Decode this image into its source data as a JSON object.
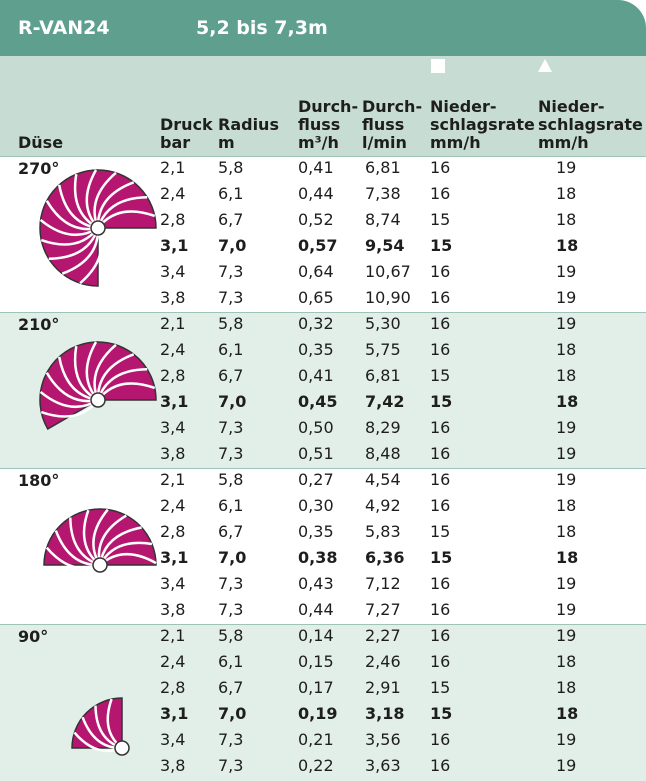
{
  "header": {
    "model": "R-VAN24",
    "range": "5,2 bis 7,3m"
  },
  "columns": [
    [
      "Düse"
    ],
    [
      "Druck",
      "bar"
    ],
    [
      "Radius",
      "m"
    ],
    [
      "Durch-",
      "fluss",
      "m³/h"
    ],
    [
      "Durch-",
      "fluss",
      "l/min"
    ],
    [
      "Nieder-",
      "schlagsrate",
      "mm/h"
    ],
    [
      "Nieder-",
      "schlagsrate",
      "mm/h"
    ]
  ],
  "bold_row": 3,
  "groups": [
    {
      "angle": "270°",
      "rows": [
        [
          "2,1",
          "5,8",
          "0,41",
          "6,81",
          "16",
          "19"
        ],
        [
          "2,4",
          "6,1",
          "0,44",
          "7,38",
          "16",
          "18"
        ],
        [
          "2,8",
          "6,7",
          "0,52",
          "8,74",
          "15",
          "18"
        ],
        [
          "3,1",
          "7,0",
          "0,57",
          "9,54",
          "15",
          "18"
        ],
        [
          "3,4",
          "7,3",
          "0,64",
          "10,67",
          "16",
          "19"
        ],
        [
          "3,8",
          "7,3",
          "0,65",
          "10,90",
          "16",
          "19"
        ]
      ]
    },
    {
      "angle": "210°",
      "rows": [
        [
          "2,1",
          "5,8",
          "0,32",
          "5,30",
          "16",
          "19"
        ],
        [
          "2,4",
          "6,1",
          "0,35",
          "5,75",
          "16",
          "18"
        ],
        [
          "2,8",
          "6,7",
          "0,41",
          "6,81",
          "15",
          "18"
        ],
        [
          "3,1",
          "7,0",
          "0,45",
          "7,42",
          "15",
          "18"
        ],
        [
          "3,4",
          "7,3",
          "0,50",
          "8,29",
          "16",
          "19"
        ],
        [
          "3,8",
          "7,3",
          "0,51",
          "8,48",
          "16",
          "19"
        ]
      ]
    },
    {
      "angle": "180°",
      "rows": [
        [
          "2,1",
          "5,8",
          "0,27",
          "4,54",
          "16",
          "19"
        ],
        [
          "2,4",
          "6,1",
          "0,30",
          "4,92",
          "16",
          "18"
        ],
        [
          "2,8",
          "6,7",
          "0,35",
          "5,83",
          "15",
          "18"
        ],
        [
          "3,1",
          "7,0",
          "0,38",
          "6,36",
          "15",
          "18"
        ],
        [
          "3,4",
          "7,3",
          "0,43",
          "7,12",
          "16",
          "19"
        ],
        [
          "3,8",
          "7,3",
          "0,44",
          "7,27",
          "16",
          "19"
        ]
      ]
    },
    {
      "angle": "90°",
      "rows": [
        [
          "2,1",
          "5,8",
          "0,14",
          "2,27",
          "16",
          "19"
        ],
        [
          "2,4",
          "6,1",
          "0,15",
          "2,46",
          "16",
          "18"
        ],
        [
          "2,8",
          "6,7",
          "0,17",
          "2,91",
          "15",
          "18"
        ],
        [
          "3,1",
          "7,0",
          "0,19",
          "3,18",
          "15",
          "18"
        ],
        [
          "3,4",
          "7,3",
          "0,21",
          "3,56",
          "16",
          "19"
        ],
        [
          "3,8",
          "7,3",
          "0,22",
          "3,63",
          "16",
          "19"
        ]
      ]
    }
  ]
}
